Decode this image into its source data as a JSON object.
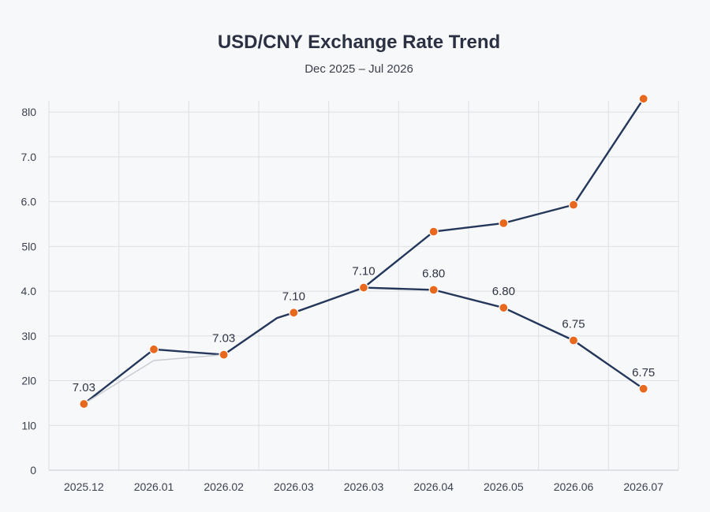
{
  "chart_data": {
    "type": "line",
    "title": "USD/CNY Exchange Rate Trend",
    "subtitle": "Dec 2025 – Jul 2026",
    "xlabel": "",
    "ylabel": "",
    "ylim": [
      0,
      8.25
    ],
    "y_ticks": [
      0,
      1,
      2,
      3,
      4,
      5,
      6,
      7,
      8
    ],
    "y_tick_labels": [
      "0",
      "1l0",
      "2l0",
      "3l0",
      "4.0",
      "5l0",
      "6.0",
      "7.0",
      "8l0"
    ],
    "categories": [
      "2025.12",
      "2026.01",
      "2026.02",
      "2026.03",
      "2026.03",
      "2026.04",
      "2026.05",
      "2026.06",
      "2026.07"
    ],
    "grid": true,
    "legend": "none",
    "colors": {
      "line": "#24375a",
      "marker": "#e8681e",
      "faint": "#c9ccd3",
      "grid": "#dde0e5"
    },
    "series": [
      {
        "values": [
          1.48,
          2.7,
          2.58,
          3.52,
          4.08,
          5.33,
          5.52,
          5.93,
          8.3
        ],
        "extra_vertices": [
          [
            2.76,
            3.4
          ]
        ],
        "markers": [
          true,
          true,
          true,
          true,
          true,
          true,
          true,
          true,
          true
        ]
      },
      {
        "values": [
          null,
          null,
          null,
          null,
          4.08,
          4.03,
          3.63,
          2.9,
          1.82
        ],
        "markers": [
          false,
          false,
          false,
          false,
          false,
          true,
          true,
          true,
          true
        ]
      },
      {
        "values": [
          1.48,
          2.45,
          2.58,
          null,
          null,
          null,
          null,
          null,
          null
        ],
        "faint": true
      }
    ],
    "annotations": [
      {
        "text": "7.03",
        "x": 0,
        "y": 1.48
      },
      {
        "text": "7.03",
        "x": 2,
        "y": 2.58
      },
      {
        "text": "7.10",
        "x": 3,
        "y": 3.52
      },
      {
        "text": "7.10",
        "x": 4,
        "y": 4.08
      },
      {
        "text": "6.80",
        "x": 5,
        "y": 4.03
      },
      {
        "text": "6.80",
        "x": 6,
        "y": 3.63
      },
      {
        "text": "6.75",
        "x": 7,
        "y": 2.9
      },
      {
        "text": "6.75",
        "x": 8,
        "y": 1.82
      }
    ]
  }
}
